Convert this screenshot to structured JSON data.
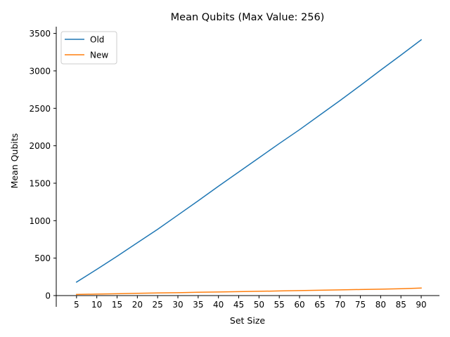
{
  "chart_data": {
    "type": "line",
    "title": "Mean Qubits (Max Value: 256)",
    "xlabel": "Set Size",
    "ylabel": "Mean Qubits",
    "x": [
      5,
      10,
      15,
      20,
      25,
      30,
      35,
      40,
      45,
      50,
      55,
      60,
      65,
      70,
      75,
      80,
      85,
      90
    ],
    "xticks": [
      "5",
      "10",
      "15",
      "20",
      "25",
      "30",
      "35",
      "40",
      "45",
      "50",
      "55",
      "60",
      "65",
      "70",
      "75",
      "80",
      "85",
      "90"
    ],
    "yticks": [
      "0",
      "500",
      "1000",
      "1500",
      "2000",
      "2500",
      "3000",
      "3500"
    ],
    "ylim": [
      0,
      3590
    ],
    "xlim": [
      0,
      94.5
    ],
    "grid": false,
    "legend": "top-left",
    "series": [
      {
        "name": "Old",
        "color": "#1f77b4",
        "values": [
          180,
          350,
          525,
          705,
          885,
          1075,
          1265,
          1460,
          1650,
          1840,
          2030,
          2215,
          2410,
          2605,
          2805,
          3010,
          3210,
          3415
        ]
      },
      {
        "name": "New",
        "color": "#ff7f0e",
        "values": [
          15,
          20,
          25,
          30,
          35,
          39,
          44,
          48,
          53,
          57,
          62,
          67,
          71,
          76,
          81,
          86,
          91,
          100
        ]
      }
    ]
  }
}
